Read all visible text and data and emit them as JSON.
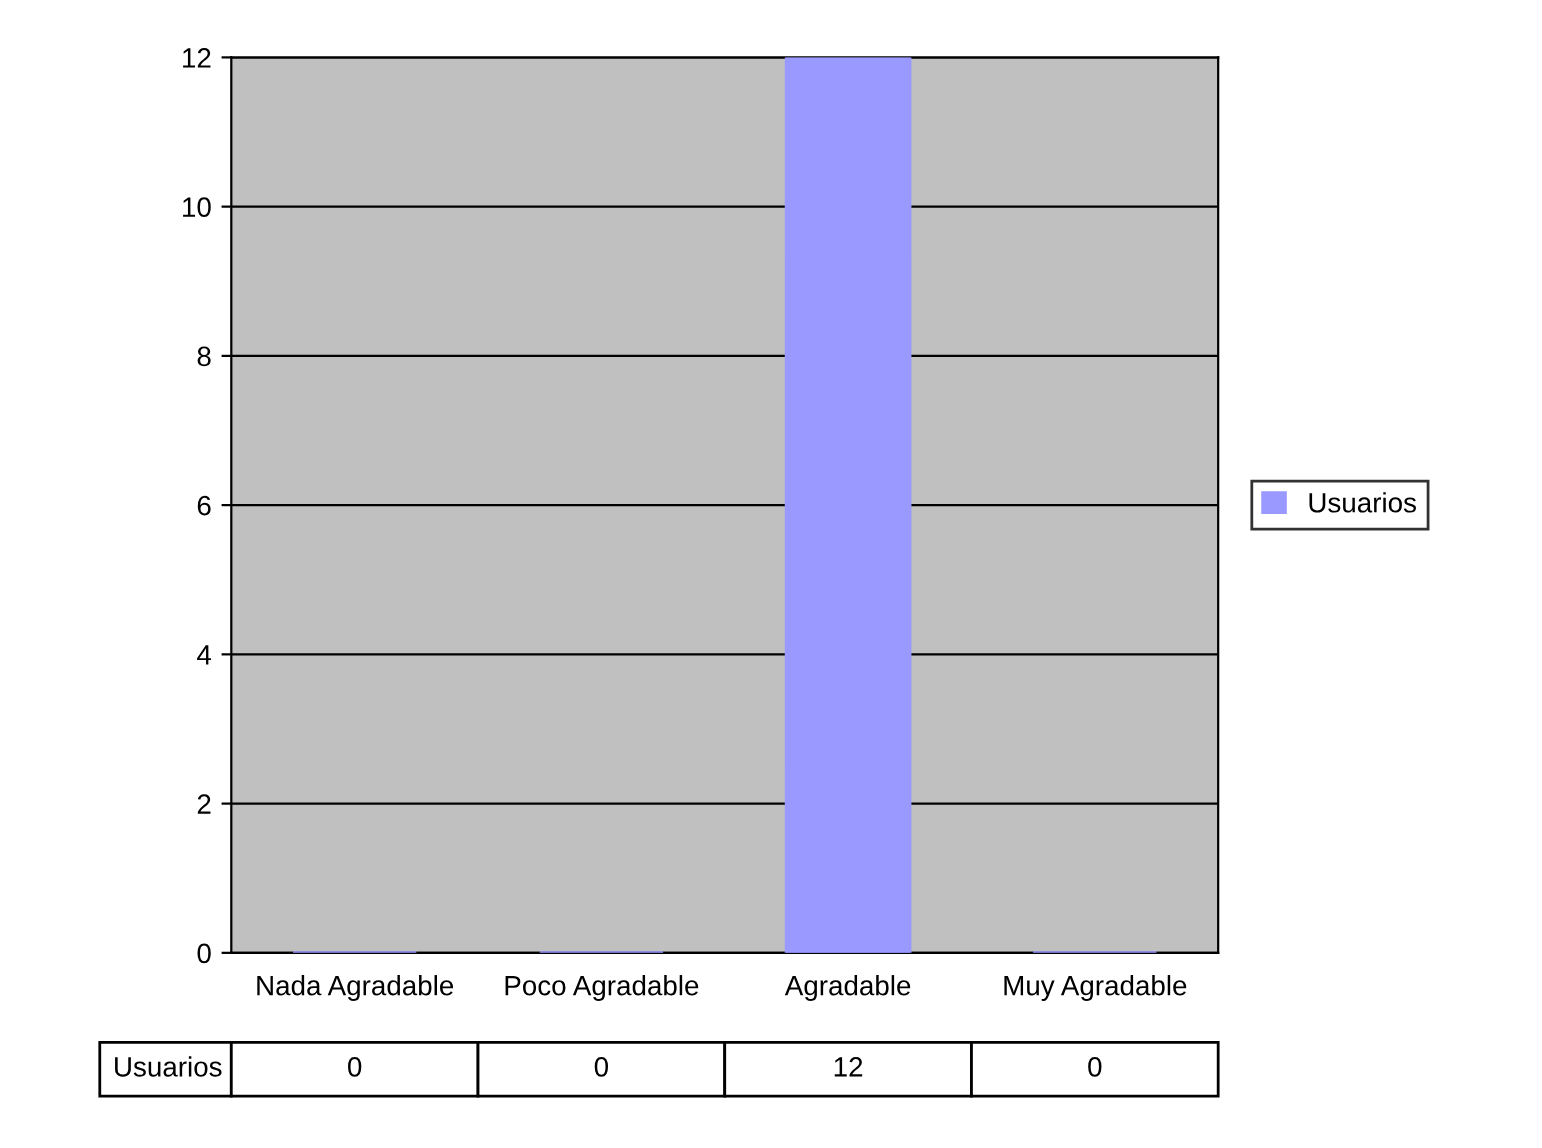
{
  "chart_data": {
    "type": "bar",
    "categories": [
      "Nada Agradable",
      "Poco Agradable",
      "Agradable",
      "Muy Agradable"
    ],
    "series": [
      {
        "name": "Usuarios",
        "color": "#9999ff",
        "values": [
          0,
          0,
          12,
          0
        ]
      }
    ],
    "ylim": [
      0,
      12
    ],
    "yticks": [
      0,
      2,
      4,
      6,
      8,
      10,
      12
    ],
    "grid": "y",
    "legend": "right",
    "data_labels": true
  }
}
